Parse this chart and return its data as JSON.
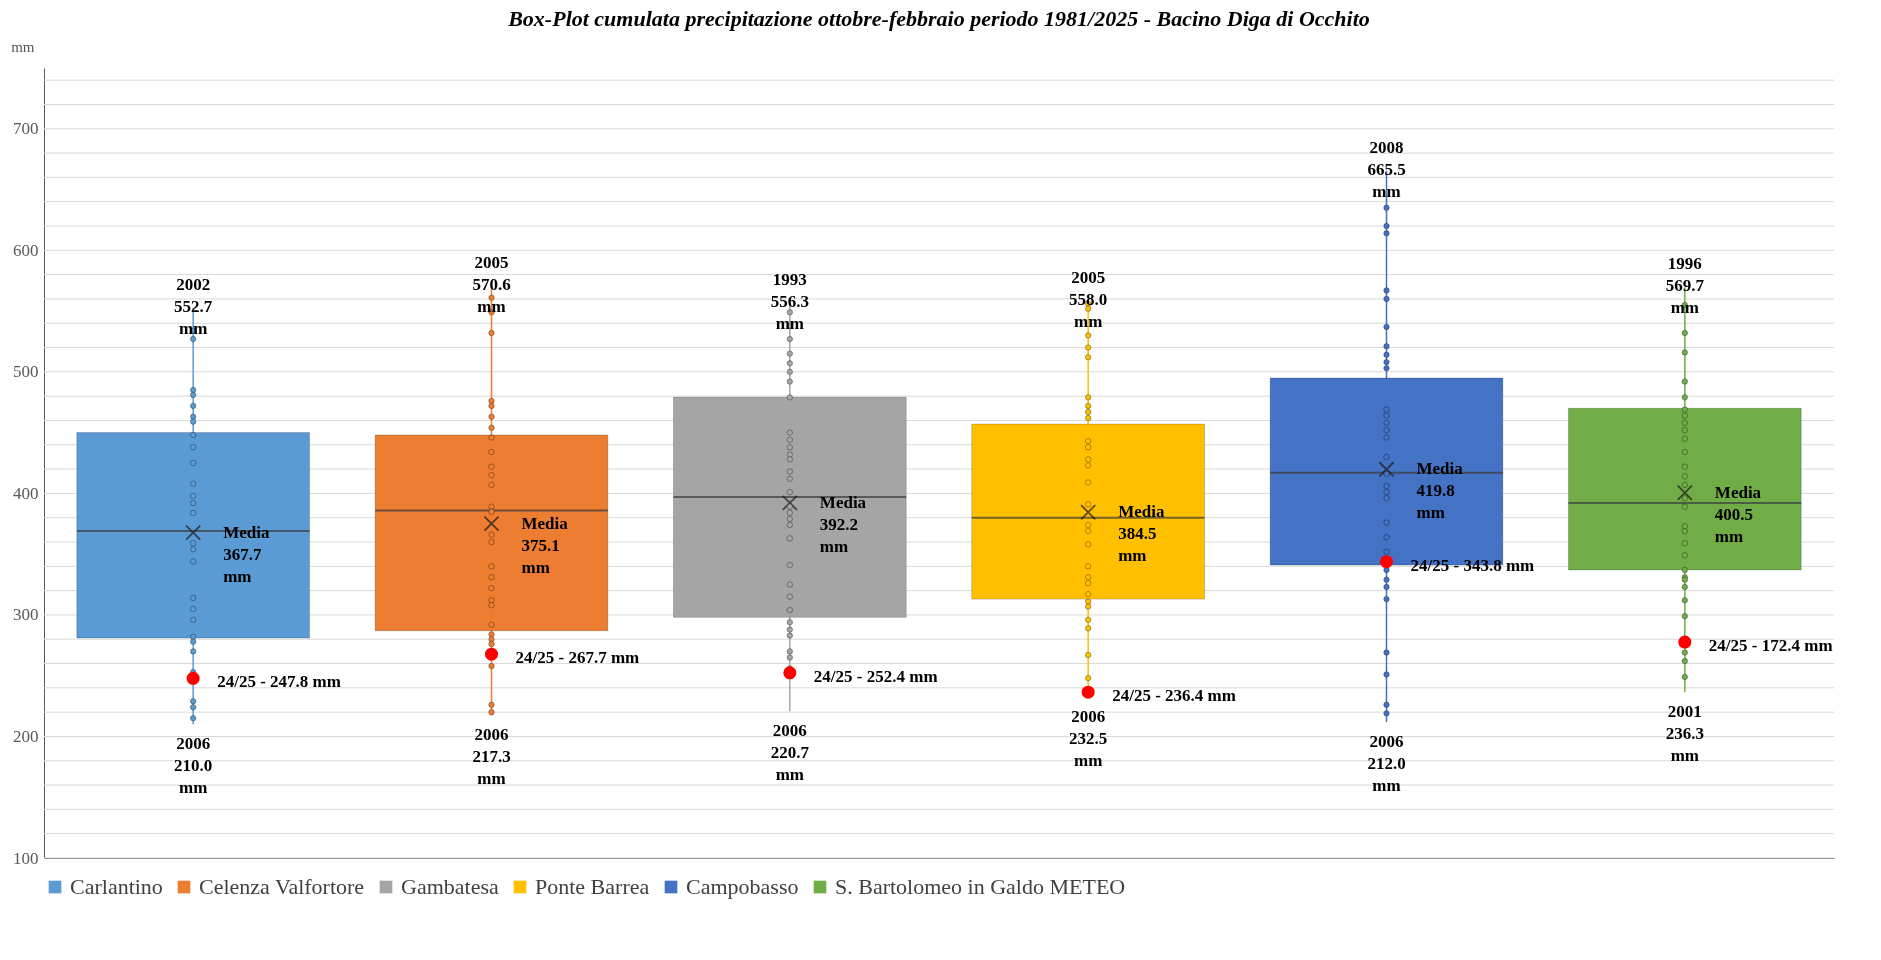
{
  "chart_data": {
    "type": "box",
    "title": "Box-Plot cumulata precipitazione ottobre-febbraio periodo 1981/2025 - Bacino Diga di Occhito",
    "ylabel": "mm",
    "categories": [
      null
    ],
    "series": [
      {
        "name": "Carlantino",
        "color": "#5b9bd5",
        "boxes": [
          {
            "low": 210.0,
            "q1": 281,
            "median": 369,
            "q3": 450,
            "high": 552.7,
            "mean": 367.7,
            "outliers": [
              534,
              527,
              485,
              481,
              472,
              463,
              459,
              448,
              438,
              425,
              408,
              398,
              392,
              384,
              359,
              354,
              344,
              314,
              305,
              296,
              282,
              278,
              270,
              253,
              229,
              224,
              215
            ]
          }
        ]
      },
      {
        "name": "Celenza Valfortore",
        "color": "#ed7d31",
        "boxes": [
          {
            "low": 217.3,
            "q1": 287,
            "median": 386,
            "q3": 448,
            "high": 570.6,
            "mean": 375.1,
            "outliers": [
              561,
              549,
              532,
              476,
              472,
              463,
              454,
              446,
              434,
              422,
              415,
              407,
              389,
              385,
              366,
              360,
              340,
              331,
              322,
              312,
              308,
              292,
              284,
              280,
              276,
              258,
              226,
              220
            ]
          }
        ]
      },
      {
        "name": "Gambatesa",
        "color": "#a5a5a5",
        "boxes": [
          {
            "low": 220.7,
            "q1": 298,
            "median": 397,
            "q3": 479,
            "high": 556.3,
            "mean": 392.2,
            "outliers": [
              549,
              538,
              527,
              515,
              507,
              500,
              492,
              479,
              450,
              444,
              438,
              432,
              428,
              418,
              412,
              401,
              389,
              384,
              379,
              374,
              363,
              341,
              325,
              315,
              304,
              294,
              288,
              283,
              270,
              265,
              256
            ]
          }
        ]
      },
      {
        "name": "Ponte Barrea",
        "color": "#ffc000",
        "boxes": [
          {
            "low": 232.5,
            "q1": 313,
            "median": 380,
            "q3": 457,
            "high": 558.0,
            "mean": 384.5,
            "outliers": [
              556,
              552,
              530,
              520,
              512,
              479,
              472,
              467,
              462,
              443,
              438,
              428,
              423,
              409,
              391,
              374,
              369,
              358,
              340,
              331,
              326,
              317,
              311,
              307,
              296,
              289,
              267,
              248
            ]
          }
        ]
      },
      {
        "name": "Campobasso",
        "color": "#4472c4",
        "boxes": [
          {
            "low": 212.0,
            "q1": 341,
            "median": 417,
            "q3": 495,
            "high": 665.5,
            "mean": 419.8,
            "outliers": [
              635,
              620,
              614,
              567,
              560,
              537,
              521,
              514,
              508,
              503,
              469,
              464,
              458,
              452,
              446,
              430,
              416,
              406,
              401,
              396,
              376,
              364,
              352,
              337,
              329,
              323,
              313,
              269,
              251,
              226,
              219
            ]
          }
        ]
      },
      {
        "name": "S. Bartolomeo in Galdo METEO",
        "color": "#70ad47",
        "boxes": [
          {
            "low": 236.3,
            "q1": 337,
            "median": 392,
            "q3": 470,
            "high": 569.7,
            "mean": 400.5,
            "outliers": [
              555,
              532,
              516,
              492,
              479,
              469,
              464,
              458,
              452,
              445,
              434,
              422,
              414,
              407,
              396,
              389,
              373,
              369,
              359,
              349,
              337,
              331,
              329,
              323,
              312,
              299,
              269,
              262,
              249
            ]
          }
        ]
      },
      {
        "type": "scatter",
        "color": "#ff0000",
        "values": [
          247.8
        ]
      },
      {
        "type": "scatter",
        "color": "#ff0000",
        "values": [
          267.7
        ]
      },
      {
        "type": "scatter",
        "color": "#ff0000",
        "values": [
          252.4
        ]
      },
      {
        "type": "scatter",
        "color": "#ff0000",
        "values": [
          236.4
        ]
      },
      {
        "type": "scatter",
        "color": "#ff0000",
        "values": [
          343.8
        ]
      },
      {
        "type": "scatter",
        "color": "#ff0000",
        "values": [
          277.7
        ]
      }
    ],
    "annotations": [
      "2002\n552.7\nmm",
      "2006\n210.0\nmm",
      "Media\n367.7\nmm",
      "24/25 - 247.8 mm",
      "2005\n570.6\nmm",
      "2006\n217.3\nmm",
      "Media\n375.1\nmm",
      "24/25 - 267.7 mm",
      "1993\n556.3\nmm",
      "2006\n220.7\nmm",
      "Media\n392.2\nmm",
      "24/25 - 252.4 mm",
      "2005\n558.0\nmm",
      "2006\n232.5\nmm",
      "Media\n384.5\nmm",
      "24/25 - 236.4 mm",
      "2008\n665.5\nmm",
      "2006\n212.0\nmm",
      "Media\n419.8\nmm",
      "24/25 - 343.8 mm",
      "1996\n569.7\nmm",
      "2001\n236.3\nmm",
      "Media\n400.5\nmm",
      "24/25 - 172.4 mm"
    ],
    "ylim": [
      100,
      750
    ],
    "yticks": [
      100,
      {
        "value": 120,
        "label": null
      },
      {
        "value": 140,
        "label": null
      },
      {
        "value": 160,
        "label": null
      },
      {
        "value": 180,
        "label": null
      },
      200,
      {
        "value": 220,
        "label": null
      },
      {
        "value": 240,
        "label": null
      },
      {
        "value": 260,
        "label": null
      },
      {
        "value": 280,
        "label": null
      },
      300,
      {
        "value": 320,
        "label": null
      },
      {
        "value": 340,
        "label": null
      },
      {
        "value": 360,
        "label": null
      },
      {
        "value": 380,
        "label": null
      },
      400,
      {
        "value": 420,
        "label": null
      },
      {
        "value": 440,
        "label": null
      },
      {
        "value": 460,
        "label": null
      },
      {
        "value": 480,
        "label": null
      },
      500,
      {
        "value": 520,
        "label": null
      },
      {
        "value": 540,
        "label": null
      },
      {
        "value": 560,
        "label": null
      },
      {
        "value": 580,
        "label": null
      },
      600,
      {
        "value": 620,
        "label": null
      },
      {
        "value": 640,
        "label": null
      },
      {
        "value": 660,
        "label": null
      },
      {
        "value": 680,
        "label": null
      },
      700,
      {
        "value": 720,
        "label": null
      },
      {
        "value": 740,
        "label": null
      }
    ],
    "grid": "y",
    "legend": "bottom",
    "tick_labels": "y"
  }
}
